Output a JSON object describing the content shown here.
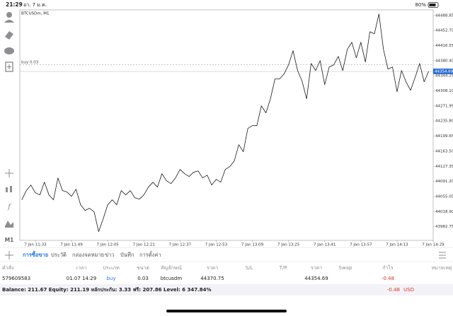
{
  "status_bar": {
    "time": "21:29",
    "date": "อา. 7 ม.ค.",
    "battery": "80%"
  },
  "toolbar": {
    "timeframe": "M1"
  },
  "chart_data": {
    "type": "line",
    "title": "BTCUSDm, M1",
    "color": "#1a1a1a",
    "categories": [
      null,
      null,
      null,
      "7 Jan 11:33",
      null,
      null,
      null,
      null,
      null,
      null,
      null,
      "7 Jan 11:49",
      null,
      null,
      null,
      null,
      null,
      null,
      null,
      "7 Jan 12:05",
      null,
      null,
      null,
      null,
      null,
      null,
      null,
      "7 Jan 12:21",
      null,
      null,
      null,
      null,
      null,
      null,
      null,
      "7 Jan 12:37",
      null,
      null,
      null,
      null,
      null,
      null,
      null,
      "7 Jan 12:53",
      null,
      null,
      null,
      null,
      null,
      null,
      null,
      "7 Jan 13:09",
      null,
      null,
      null,
      null,
      null,
      null,
      null,
      "7 Jan 13:25",
      null,
      null,
      null,
      null,
      null,
      null,
      null,
      "7 Jan 13:41",
      null,
      null,
      null,
      null,
      null,
      null,
      null,
      "7 Jan 13:57",
      null,
      null,
      null,
      null,
      null,
      null,
      null,
      "7 Jan 14:13",
      null,
      null,
      null,
      null,
      null,
      null,
      null,
      "7 Jan 14:29"
    ],
    "values": [
      44047.1,
      44069.1,
      44082.6,
      44064.0,
      44058.9,
      44089.4,
      44058.9,
      44047.1,
      44099.5,
      44069.1,
      44065.7,
      44055.5,
      44072.4,
      44035.2,
      44021.7,
      44026.8,
      44018.3,
      43970.9,
      44001.4,
      44035.2,
      44047.1,
      44035.2,
      44069.1,
      44058.9,
      44069.1,
      44052.1,
      44048.8,
      44058.9,
      44077.5,
      44089.4,
      44077.5,
      44109.7,
      44092.8,
      44086.0,
      44099.5,
      44119.8,
      44109.7,
      44102.9,
      44113.1,
      44116.4,
      44099.5,
      44106.3,
      44082.6,
      44096.1,
      44089.4,
      44119.8,
      44126.6,
      44140.2,
      44179.1,
      44162.2,
      44218.0,
      44224.8,
      44224.8,
      44272.2,
      44255.2,
      44289.1,
      44336.5,
      44336.5,
      44348.3,
      44370.3,
      44404.2,
      44356.8,
      44331.4,
      44289.1,
      44373.7,
      44356.8,
      44380.5,
      44323.0,
      44365.2,
      44370.3,
      44390.6,
      44356.8,
      44407.5,
      44424.5,
      44387.2,
      44424.5,
      44377.1,
      44449.8,
      44444.8,
      44492.2,
      44407.5,
      44360.2,
      44365.2,
      44306.0,
      44356.8,
      44329.7,
      44309.4,
      44339.9,
      44373.7,
      44329.7,
      44354.7,
      null
    ],
    "ylim": [
      43950,
      44502
    ],
    "yticks": [
      44488.85,
      {
        "value": 44452.7,
        "label": "44452.70"
      },
      44416.55,
      {
        "value": 44380.4,
        "label": "44380.40"
      },
      44344.25,
      {
        "value": 44308.1,
        "label": "44308.10"
      },
      44271.95,
      {
        "value": 44235.8,
        "label": "44235.80"
      },
      44199.65,
      {
        "value": 44163.5,
        "label": "44163.50"
      },
      44127.35,
      {
        "value": 44091.2,
        "label": "44091.20"
      },
      44055.05,
      {
        "value": 44018.9,
        "label": "44018.90"
      },
      43982.75
    ],
    "last_price": 44354.69,
    "buy_line": {
      "label": "buy 0.03",
      "value": 44370.75
    }
  },
  "tabs": [
    "การซื้อขาย",
    "ประวัติ",
    "กล่องจดหมาย",
    "ข่าว",
    "บันทึก",
    "การตั้งค่า"
  ],
  "active_tab": 0,
  "table": {
    "columns": [
      "คำสั่ง",
      "เวลา",
      "ประเภท",
      "ขนาด",
      "สัญลักษณ์",
      "ราคา",
      "S/L",
      "T/P",
      "ราคา",
      "Swap",
      "กำไร",
      "หมายเหตุ"
    ],
    "rows": [
      [
        "579609583",
        "01.07 14:29",
        "buy",
        "0.03",
        "btcusdm",
        "44370.75",
        null,
        null,
        "44354.69",
        null,
        "-0.48",
        null
      ]
    ]
  },
  "summary": {
    "text": "Balance: 211.67 Equity: 211.19 หลักประกัน: 3.33 ฟรี: 207.86 Level: 6 347.84%",
    "profit": "-0.48",
    "currency": "USD"
  }
}
